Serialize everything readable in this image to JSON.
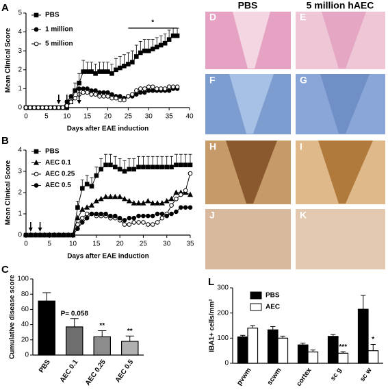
{
  "chart_data": [
    {
      "type": "line",
      "panel": "A",
      "xlabel": "Days after EAE induction",
      "ylabel": "Mean Clinical Score",
      "x": [
        0,
        1,
        2,
        3,
        4,
        5,
        6,
        7,
        8,
        9,
        10,
        11,
        12,
        13,
        14,
        15,
        16,
        17,
        18,
        19,
        20,
        21,
        22,
        23,
        24,
        25,
        26,
        27,
        28,
        29,
        30,
        31,
        32,
        33,
        34,
        35,
        36,
        37
      ],
      "xlim": [
        0,
        40
      ],
      "xticks": [
        0,
        5,
        10,
        15,
        20,
        25,
        30,
        35,
        40
      ],
      "ylim": [
        0,
        5
      ],
      "yticks": [
        0,
        1,
        2,
        3,
        4,
        5
      ],
      "arrows": [
        8,
        10,
        13
      ],
      "significance": {
        "text": "*",
        "from": 25,
        "to": 37
      },
      "series": [
        {
          "name": "PBS",
          "color": "#000000",
          "marker": "square",
          "marker_fill": "#000000",
          "values": [
            0,
            0,
            0,
            0,
            0,
            0,
            0,
            0,
            0,
            0,
            0,
            0.3,
            0.9,
            1.3,
            1.9,
            1.9,
            1.9,
            1.8,
            1.9,
            1.9,
            1.9,
            1.8,
            2.0,
            2.1,
            2.2,
            2.3,
            2.4,
            2.7,
            2.9,
            3.0,
            3.0,
            3.1,
            3.2,
            3.3,
            3.4,
            3.6,
            3.8,
            3.8
          ],
          "errors": [
            0,
            0,
            0,
            0,
            0,
            0,
            0,
            0,
            0,
            0,
            0,
            0.2,
            0.4,
            0.5,
            0.6,
            0.5,
            0.5,
            0.5,
            0.5,
            0.5,
            0.5,
            0.5,
            0.6,
            0.6,
            0.6,
            0.6,
            0.6,
            0.6,
            0.6,
            0.6,
            0.6,
            0.5,
            0.5,
            0.5,
            0.5,
            0.5,
            0.4,
            0.4
          ]
        },
        {
          "name": "1 million",
          "color": "#000000",
          "marker": "circle",
          "marker_fill": "#000000",
          "values": [
            0,
            0,
            0,
            0,
            0,
            0,
            0,
            0,
            0,
            0,
            0.3,
            0.6,
            0.9,
            1.0,
            1.0,
            1.0,
            0.9,
            0.9,
            0.8,
            0.8,
            0.8,
            0.7,
            0.6,
            0.6,
            0.5,
            0.6,
            0.6,
            0.7,
            0.8,
            0.8,
            0.9,
            0.9,
            0.9,
            0.9,
            0.9,
            0.9,
            1.0,
            1.0
          ]
        },
        {
          "name": "5 million",
          "color": "#000000",
          "marker": "circle",
          "marker_fill": "#ffffff",
          "values": [
            0,
            0,
            0,
            0,
            0,
            0,
            0,
            0,
            0,
            0,
            0.1,
            0.3,
            0.5,
            0.7,
            0.8,
            0.8,
            0.7,
            0.7,
            0.6,
            0.6,
            0.6,
            0.5,
            0.5,
            0.4,
            0.4,
            0.6,
            0.7,
            0.9,
            1.0,
            1.0,
            1.1,
            1.1,
            1.0,
            1.0,
            1.0,
            1.1,
            1.1,
            1.1
          ]
        }
      ]
    },
    {
      "type": "line",
      "panel": "B",
      "xlabel": "Days after EAE induction",
      "ylabel": "Mean Clinical Score",
      "x": [
        0,
        1,
        2,
        3,
        4,
        5,
        6,
        7,
        8,
        9,
        10,
        11,
        12,
        13,
        14,
        15,
        16,
        17,
        18,
        19,
        20,
        21,
        22,
        23,
        24,
        25,
        26,
        27,
        28,
        29,
        30,
        31,
        32,
        33,
        34,
        35
      ],
      "xlim": [
        0,
        35
      ],
      "xticks": [
        0,
        5,
        10,
        15,
        20,
        25,
        30,
        35
      ],
      "ylim": [
        0,
        4
      ],
      "yticks": [
        0,
        1,
        2,
        3,
        4
      ],
      "arrows": [
        1,
        3
      ],
      "series": [
        {
          "name": "PBS",
          "color": "#000000",
          "marker": "square",
          "marker_fill": "#000000",
          "values": [
            0,
            0,
            0,
            0,
            0,
            0,
            0,
            0,
            0,
            0,
            0,
            1.3,
            2.2,
            2.4,
            2.3,
            2.8,
            3.1,
            3.3,
            3.3,
            3.2,
            3.1,
            3.0,
            3.1,
            3.1,
            3.2,
            3.2,
            3.2,
            3.2,
            3.2,
            3.2,
            3.2,
            3.2,
            3.3,
            3.3,
            3.3,
            3.3
          ],
          "errors": [
            0,
            0,
            0,
            0,
            0,
            0,
            0,
            0,
            0,
            0,
            0,
            0.3,
            0.4,
            0.4,
            0.4,
            0.4,
            0.5,
            0.5,
            0.5,
            0.5,
            0.5,
            0.5,
            0.5,
            0.5,
            0.5,
            0.5,
            0.5,
            0.5,
            0.5,
            0.5,
            0.5,
            0.5,
            0.5,
            0.5,
            0.5,
            0.5
          ]
        },
        {
          "name": "AEC 0.1",
          "color": "#000000",
          "marker": "triangle",
          "marker_fill": "#000000",
          "values": [
            0,
            0,
            0,
            0,
            0,
            0,
            0,
            0,
            0,
            0,
            0,
            0.8,
            1.2,
            1.3,
            1.4,
            1.6,
            1.7,
            1.8,
            1.8,
            1.8,
            1.8,
            1.7,
            1.6,
            1.5,
            1.5,
            1.5,
            1.6,
            1.5,
            1.5,
            1.5,
            1.6,
            1.7,
            2.0,
            2.0,
            2.0,
            1.9
          ]
        },
        {
          "name": "AEC 0.25",
          "color": "#000000",
          "marker": "circle",
          "marker_fill": "#ffffff",
          "values": [
            0,
            0,
            0,
            0,
            0,
            0,
            0,
            0,
            0,
            0,
            0,
            0.5,
            0.8,
            1.0,
            1.0,
            0.9,
            0.9,
            0.9,
            0.8,
            0.8,
            0.7,
            0.5,
            0.5,
            0.6,
            0.6,
            0.6,
            0.5,
            0.5,
            0.6,
            0.8,
            1.0,
            1.4,
            1.7,
            1.9,
            2.1,
            2.9
          ]
        },
        {
          "name": "AEC 0.5",
          "color": "#000000",
          "marker": "circle",
          "marker_fill": "#000000",
          "values": [
            0,
            0,
            0,
            0,
            0,
            0,
            0,
            0,
            0,
            0,
            0,
            0.3,
            0.6,
            0.8,
            1.0,
            1.0,
            1.0,
            1.0,
            0.9,
            0.9,
            0.8,
            0.7,
            0.8,
            0.8,
            0.9,
            0.9,
            0.9,
            0.9,
            1.0,
            1.0,
            0.9,
            1.0,
            1.1,
            1.3,
            1.3,
            1.3
          ]
        }
      ]
    },
    {
      "type": "bar",
      "panel": "C",
      "ylabel": "Cumulative disease score",
      "categories": [
        "PBS",
        "AEC 0.1",
        "AEC 0.25",
        "AEC 0.5"
      ],
      "values": [
        71,
        37,
        24,
        18
      ],
      "errors": [
        11,
        11,
        8,
        7
      ],
      "annotations": [
        null,
        "P= 0.058",
        "**",
        "**"
      ],
      "colors": [
        "#000000",
        "#6e6e6e",
        "#8c8c8c",
        "#b0b0b0"
      ],
      "ylim": [
        0,
        100
      ],
      "yticks": [
        0,
        20,
        40,
        60,
        80,
        100
      ]
    },
    {
      "type": "bar",
      "panel": "L",
      "ylabel": "IBA1+ cells/mm²",
      "categories": [
        "pvwm",
        "scwm",
        "cortex",
        "sc g",
        "sc w"
      ],
      "series": [
        {
          "name": "PBS",
          "color": "#000000",
          "values": [
            105,
            133,
            73,
            107,
            215
          ],
          "errors": [
            6,
            13,
            7,
            8,
            55
          ]
        },
        {
          "name": "AEC",
          "color": "#ffffff",
          "values": [
            140,
            100,
            45,
            40,
            50
          ],
          "errors": [
            10,
            8,
            8,
            6,
            25
          ],
          "annotations": [
            null,
            null,
            null,
            "***",
            "*"
          ]
        }
      ],
      "ylim": [
        0,
        300
      ],
      "yticks": [
        0,
        100,
        200,
        300
      ]
    }
  ],
  "images": {
    "headers": [
      "PBS",
      "5 million hAEC"
    ],
    "labels": [
      "D",
      "E",
      "F",
      "G",
      "H",
      "I",
      "J",
      "K"
    ]
  }
}
